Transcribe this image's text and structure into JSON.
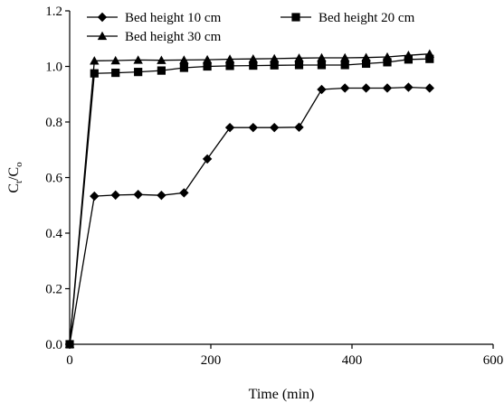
{
  "chart_data": {
    "type": "line",
    "xlabel": "Time (min)",
    "ylabel": {
      "base": "C",
      "sub1": "t",
      "sep": "/C",
      "sub2": "o"
    },
    "xlim": [
      0,
      600
    ],
    "ylim": [
      0.0,
      1.2
    ],
    "xticks": [
      "0",
      "200",
      "400",
      "600"
    ],
    "yticks": [
      "0.0",
      "0.2",
      "0.4",
      "0.6",
      "0.8",
      "1.0",
      "1.2"
    ],
    "grid": false,
    "legend_placement": "top",
    "series": [
      {
        "name": "Bed height 10 cm",
        "marker": "diamond",
        "x": [
          0,
          35,
          65,
          97,
          130,
          162,
          195,
          227,
          260,
          290,
          325,
          357,
          390,
          420,
          450,
          480,
          510
        ],
        "y": [
          0.0,
          0.533,
          0.537,
          0.539,
          0.536,
          0.545,
          0.667,
          0.78,
          0.78,
          0.78,
          0.781,
          0.917,
          0.922,
          0.922,
          0.922,
          0.925,
          0.922
        ]
      },
      {
        "name": "Bed height 20 cm",
        "marker": "square",
        "x": [
          0,
          35,
          65,
          97,
          130,
          162,
          195,
          227,
          260,
          290,
          325,
          357,
          390,
          420,
          450,
          480,
          510
        ],
        "y": [
          0.0,
          0.975,
          0.977,
          0.98,
          0.985,
          0.995,
          1.0,
          1.002,
          1.003,
          1.004,
          1.005,
          1.005,
          1.005,
          1.01,
          1.015,
          1.025,
          1.027
        ]
      },
      {
        "name": "Bed height 30 cm",
        "marker": "triangle",
        "x": [
          0,
          35,
          65,
          97,
          130,
          162,
          195,
          227,
          260,
          290,
          325,
          357,
          390,
          420,
          450,
          480,
          510
        ],
        "y": [
          0.0,
          1.02,
          1.021,
          1.023,
          1.022,
          1.023,
          1.024,
          1.026,
          1.027,
          1.028,
          1.03,
          1.031,
          1.031,
          1.032,
          1.034,
          1.04,
          1.045
        ]
      }
    ]
  }
}
